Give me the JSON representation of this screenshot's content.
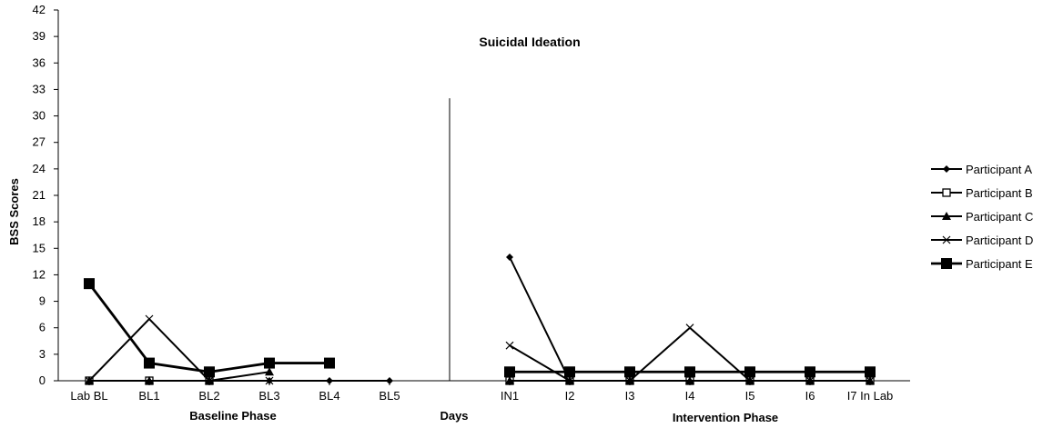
{
  "chart_data": {
    "type": "line",
    "title": "Suicidal Ideation",
    "ylabel": "BSS Scores",
    "xlabel": "Days",
    "phase_labels": [
      "Baseline Phase",
      "Intervention Phase"
    ],
    "ylim": [
      0,
      42
    ],
    "yticks": [
      0,
      3,
      6,
      9,
      12,
      15,
      18,
      21,
      24,
      27,
      30,
      33,
      36,
      39,
      42
    ],
    "categories": [
      "Lab BL",
      "BL1",
      "BL2",
      "BL3",
      "BL4",
      "BL5",
      "",
      "IN1",
      "I2",
      "I3",
      "I4",
      "I5",
      "I6",
      "I7 In Lab"
    ],
    "phase_change_after": "BL5",
    "legend_position": "right",
    "series": [
      {
        "name": "Participant A",
        "marker": "diamond",
        "values": [
          0,
          0,
          0,
          0,
          0,
          0,
          null,
          14,
          0,
          0,
          0,
          0,
          0,
          0
        ]
      },
      {
        "name": "Participant B",
        "marker": "open-square",
        "values": [
          0,
          0,
          0,
          null,
          null,
          null,
          null,
          0,
          0,
          0,
          0,
          0,
          0,
          0
        ]
      },
      {
        "name": "Participant C",
        "marker": "triangle",
        "values": [
          0,
          0,
          0,
          1,
          null,
          null,
          null,
          0,
          0,
          0,
          0,
          0,
          0,
          0
        ]
      },
      {
        "name": "Participant D",
        "marker": "x",
        "values": [
          0,
          7,
          0,
          0,
          null,
          null,
          null,
          4,
          0,
          0,
          6,
          0,
          0,
          0
        ]
      },
      {
        "name": "Participant E",
        "marker": "filled-square",
        "values": [
          11,
          2,
          1,
          2,
          2,
          null,
          null,
          1,
          1,
          1,
          1,
          1,
          1,
          1
        ]
      }
    ]
  }
}
